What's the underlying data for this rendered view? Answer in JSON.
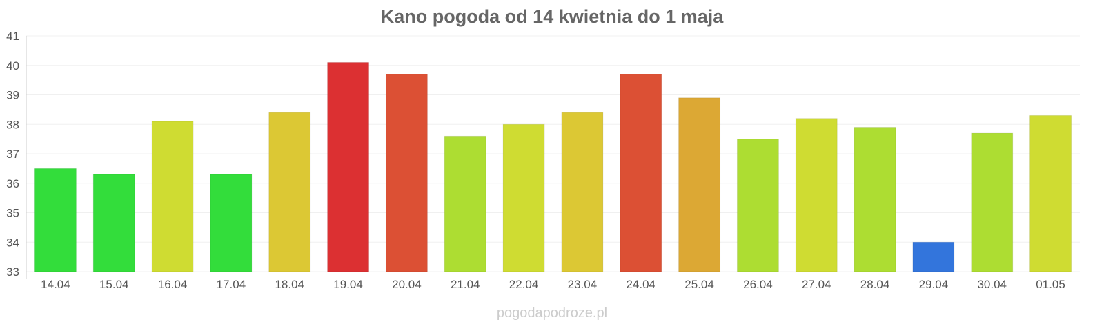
{
  "chart_data": {
    "type": "bar",
    "title": "Kano pogoda od 14 kwietnia do 1 maja",
    "xlabel": "",
    "ylabel": "",
    "ylim": [
      33,
      41
    ],
    "yticks": [
      33,
      34,
      35,
      36,
      37,
      38,
      39,
      40,
      41
    ],
    "grid": true,
    "categories": [
      "14.04",
      "15.04",
      "16.04",
      "17.04",
      "18.04",
      "19.04",
      "20.04",
      "21.04",
      "22.04",
      "23.04",
      "24.04",
      "25.04",
      "26.04",
      "27.04",
      "28.04",
      "29.04",
      "30.04",
      "01.05"
    ],
    "values": [
      36.5,
      36.3,
      38.1,
      36.3,
      38.4,
      40.1,
      39.7,
      37.6,
      38.0,
      38.4,
      39.7,
      38.9,
      37.5,
      38.2,
      37.9,
      34.0,
      37.7,
      38.3
    ],
    "colors": [
      "#33dd3b",
      "#33dd3b",
      "#cfdc32",
      "#33dd3b",
      "#dcc834",
      "#dc3032",
      "#dc5034",
      "#addd32",
      "#cfdc32",
      "#dcc834",
      "#dc5034",
      "#dca834",
      "#addd32",
      "#cfdc32",
      "#addd32",
      "#3375dc",
      "#addd32",
      "#cfdc32"
    ]
  },
  "watermark": "pogodapodroze.pl"
}
